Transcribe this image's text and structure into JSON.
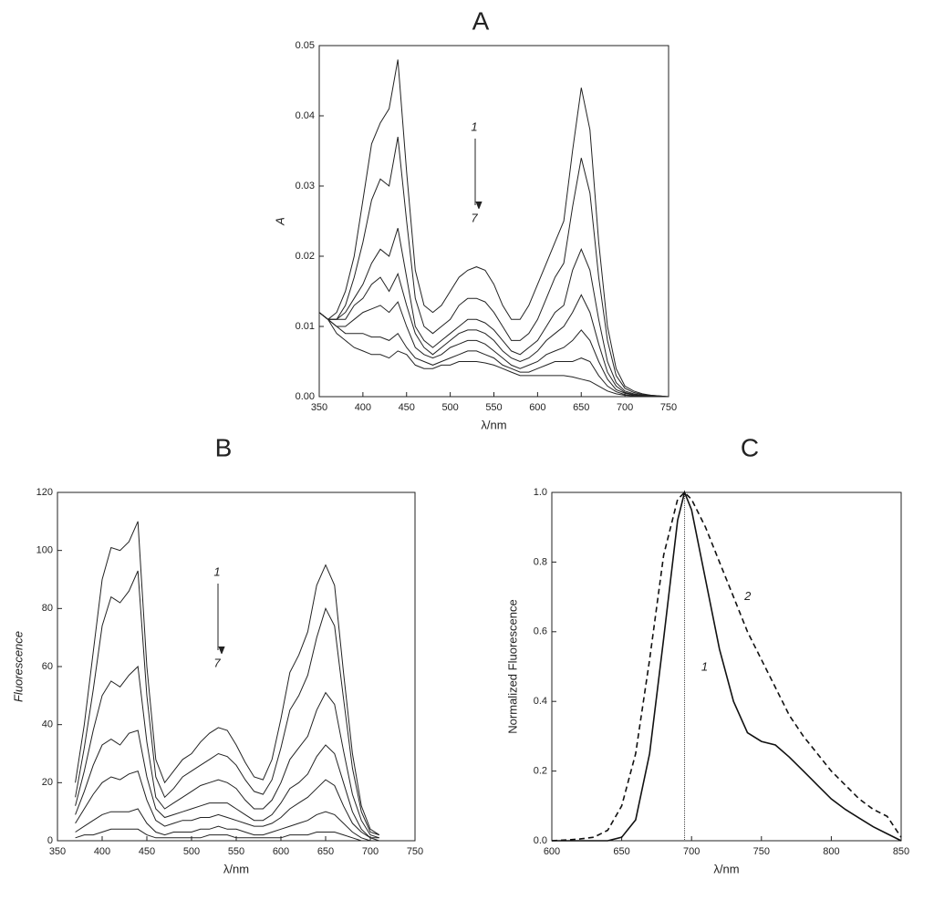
{
  "chart_data": [
    {
      "type": "line",
      "title": "A",
      "x_label": "λ/nm",
      "y_label": "A",
      "annotations": [
        "1",
        "7"
      ],
      "xlim": [
        350,
        750
      ],
      "xticks": [
        350,
        400,
        450,
        500,
        550,
        600,
        650,
        700,
        750
      ],
      "ylim": [
        0,
        0.05
      ],
      "yticks": [
        {
          "value": 0,
          "label": "0.00"
        },
        0.01,
        0.02,
        0.03,
        0.04,
        0.05
      ],
      "x": [
        350,
        360,
        370,
        380,
        390,
        400,
        410,
        420,
        430,
        440,
        450,
        460,
        470,
        480,
        490,
        500,
        510,
        520,
        530,
        540,
        550,
        560,
        570,
        580,
        590,
        600,
        610,
        620,
        630,
        640,
        650,
        660,
        670,
        680,
        690,
        700,
        710,
        720,
        730,
        740,
        750
      ],
      "series": [
        {
          "color": "#222222",
          "values": [
            0.012,
            0.011,
            0.012,
            0.015,
            0.02,
            0.028,
            0.036,
            0.039,
            0.041,
            0.048,
            0.032,
            0.018,
            0.013,
            0.012,
            0.013,
            0.015,
            0.017,
            0.018,
            0.0185,
            0.018,
            0.016,
            0.013,
            0.011,
            0.011,
            0.013,
            0.016,
            0.019,
            0.022,
            0.025,
            0.035,
            0.044,
            0.038,
            0.022,
            0.01,
            0.004,
            0.0015,
            0.0008,
            0.0004,
            0.0002,
            0.0001,
            0
          ]
        },
        {
          "color": "#222222",
          "values": [
            0.012,
            0.011,
            0.011,
            0.013,
            0.017,
            0.022,
            0.028,
            0.031,
            0.03,
            0.037,
            0.025,
            0.014,
            0.01,
            0.009,
            0.01,
            0.011,
            0.013,
            0.014,
            0.014,
            0.0135,
            0.012,
            0.01,
            0.008,
            0.008,
            0.009,
            0.011,
            0.014,
            0.017,
            0.019,
            0.027,
            0.034,
            0.029,
            0.017,
            0.008,
            0.003,
            0.0012,
            0.0006,
            0.0003,
            0.0002,
            0.0001,
            0
          ]
        },
        {
          "color": "#222222",
          "values": [
            0.012,
            0.011,
            0.011,
            0.012,
            0.014,
            0.016,
            0.019,
            0.021,
            0.02,
            0.024,
            0.017,
            0.01,
            0.008,
            0.007,
            0.008,
            0.009,
            0.01,
            0.011,
            0.011,
            0.0105,
            0.0095,
            0.008,
            0.0065,
            0.006,
            0.007,
            0.008,
            0.01,
            0.012,
            0.013,
            0.018,
            0.021,
            0.018,
            0.011,
            0.005,
            0.002,
            0.0008,
            0.0004,
            0.0002,
            0.0001,
            0,
            0
          ]
        },
        {
          "color": "#222222",
          "values": [
            0.012,
            0.011,
            0.011,
            0.011,
            0.013,
            0.014,
            0.016,
            0.017,
            0.015,
            0.0175,
            0.013,
            0.009,
            0.007,
            0.006,
            0.007,
            0.008,
            0.009,
            0.0095,
            0.0095,
            0.009,
            0.008,
            0.0065,
            0.0055,
            0.005,
            0.0055,
            0.0065,
            0.008,
            0.009,
            0.01,
            0.012,
            0.0145,
            0.012,
            0.0075,
            0.0035,
            0.0015,
            0.0006,
            0.0003,
            0.0002,
            0.0001,
            0,
            0
          ]
        },
        {
          "color": "#222222",
          "values": [
            0.012,
            0.011,
            0.01,
            0.01,
            0.011,
            0.012,
            0.0125,
            0.013,
            0.012,
            0.0135,
            0.01,
            0.007,
            0.006,
            0.0055,
            0.006,
            0.007,
            0.0075,
            0.008,
            0.008,
            0.0075,
            0.0065,
            0.0055,
            0.0045,
            0.004,
            0.0045,
            0.005,
            0.006,
            0.0065,
            0.007,
            0.008,
            0.0095,
            0.008,
            0.005,
            0.0025,
            0.001,
            0.0005,
            0.0002,
            0.0001,
            0,
            0,
            0
          ]
        },
        {
          "color": "#222222",
          "values": [
            0.012,
            0.011,
            0.01,
            0.009,
            0.009,
            0.009,
            0.0085,
            0.0085,
            0.008,
            0.009,
            0.007,
            0.0055,
            0.005,
            0.0045,
            0.005,
            0.0055,
            0.006,
            0.0065,
            0.0065,
            0.006,
            0.0055,
            0.0045,
            0.004,
            0.0035,
            0.0035,
            0.004,
            0.0045,
            0.005,
            0.005,
            0.005,
            0.0055,
            0.005,
            0.003,
            0.0015,
            0.0007,
            0.0003,
            0.0001,
            0,
            0,
            0,
            0
          ]
        },
        {
          "color": "#222222",
          "values": [
            0.012,
            0.011,
            0.009,
            0.008,
            0.007,
            0.0065,
            0.006,
            0.006,
            0.0055,
            0.0065,
            0.006,
            0.0045,
            0.004,
            0.004,
            0.0045,
            0.0045,
            0.005,
            0.005,
            0.005,
            0.0048,
            0.0045,
            0.004,
            0.0035,
            0.003,
            0.003,
            0.003,
            0.003,
            0.003,
            0.003,
            0.0028,
            0.0025,
            0.0022,
            0.0015,
            0.0008,
            0.0004,
            0.0002,
            0.0001,
            0,
            0,
            0,
            0
          ]
        }
      ]
    },
    {
      "type": "line",
      "title": "B",
      "x_label": "λ/nm",
      "y_label": "Fluorescence",
      "annotations": [
        "1",
        "7"
      ],
      "xlim": [
        350,
        750
      ],
      "xticks": [
        350,
        400,
        450,
        500,
        550,
        600,
        650,
        700,
        750
      ],
      "ylim": [
        0,
        120
      ],
      "yticks": [
        0,
        20,
        40,
        60,
        80,
        100,
        120
      ],
      "x": [
        370,
        380,
        390,
        400,
        410,
        420,
        430,
        440,
        450,
        460,
        470,
        480,
        490,
        500,
        510,
        520,
        530,
        540,
        550,
        560,
        570,
        580,
        590,
        600,
        610,
        620,
        630,
        640,
        650,
        660,
        670,
        680,
        690,
        700,
        710
      ],
      "series": [
        {
          "color": "#222222",
          "values": [
            20,
            40,
            65,
            90,
            101,
            100,
            103,
            110,
            60,
            28,
            20,
            24,
            28,
            30,
            34,
            37,
            39,
            38,
            33,
            27,
            22,
            21,
            28,
            42,
            58,
            64,
            72,
            88,
            95,
            88,
            58,
            30,
            12,
            4,
            2
          ]
        },
        {
          "color": "#222222",
          "values": [
            15,
            32,
            52,
            74,
            84,
            82,
            86,
            93,
            50,
            22,
            15,
            18,
            22,
            24,
            26,
            28,
            30,
            29,
            26,
            21,
            17,
            16,
            21,
            32,
            45,
            50,
            57,
            70,
            80,
            74,
            49,
            25,
            10,
            3,
            2
          ]
        },
        {
          "color": "#222222",
          "values": [
            12,
            24,
            38,
            50,
            55,
            53,
            57,
            60,
            34,
            15,
            11,
            13,
            15,
            17,
            19,
            20,
            21,
            20,
            18,
            14,
            11,
            11,
            14,
            20,
            28,
            32,
            36,
            45,
            51,
            47,
            31,
            16,
            7,
            2,
            1
          ]
        },
        {
          "color": "#222222",
          "values": [
            9,
            17,
            26,
            33,
            35,
            33,
            37,
            38,
            22,
            11,
            8,
            9,
            10,
            11,
            12,
            13,
            13,
            13,
            11,
            9,
            7,
            7,
            9,
            13,
            18,
            20,
            23,
            29,
            33,
            30,
            20,
            10,
            4,
            1,
            1
          ]
        },
        {
          "color": "#222222",
          "values": [
            6,
            11,
            16,
            20,
            22,
            21,
            23,
            24,
            14,
            7,
            5,
            6,
            7,
            7,
            8,
            8,
            9,
            8,
            7,
            6,
            5,
            5,
            6,
            8,
            11,
            13,
            15,
            18,
            21,
            19,
            12,
            6,
            3,
            1,
            0
          ]
        },
        {
          "color": "#222222",
          "values": [
            3,
            5,
            7,
            9,
            10,
            10,
            10,
            11,
            6,
            3,
            2,
            3,
            3,
            3,
            4,
            4,
            5,
            4,
            4,
            3,
            2,
            2,
            3,
            4,
            5,
            6,
            7,
            9,
            10,
            9,
            6,
            3,
            1,
            0,
            0
          ]
        },
        {
          "color": "#222222",
          "values": [
            1,
            2,
            2,
            3,
            4,
            4,
            4,
            4,
            2,
            1,
            1,
            1,
            1,
            1,
            1,
            2,
            2,
            2,
            1,
            1,
            1,
            1,
            1,
            1,
            2,
            2,
            2,
            3,
            3,
            3,
            2,
            1,
            0,
            0,
            0
          ]
        }
      ]
    },
    {
      "type": "line",
      "title": "C",
      "x_label": "λ/nm",
      "y_label": "Normalized Fluorescence",
      "vline": 695,
      "xlim": [
        600,
        850
      ],
      "xticks": [
        600,
        650,
        700,
        750,
        800,
        850
      ],
      "ylim": [
        0,
        1
      ],
      "yticks": [
        {
          "value": 0,
          "label": "0.0"
        },
        0.2,
        0.4,
        0.6,
        0.8,
        {
          "value": 1,
          "label": "1.0"
        }
      ],
      "x": [
        600,
        610,
        620,
        630,
        640,
        650,
        660,
        670,
        680,
        690,
        695,
        700,
        710,
        720,
        730,
        740,
        750,
        760,
        770,
        780,
        790,
        800,
        810,
        820,
        830,
        840,
        850
      ],
      "series": [
        {
          "name": "1",
          "color": "#111111",
          "dash": false,
          "values": [
            0,
            0,
            0,
            0,
            0,
            0.01,
            0.06,
            0.25,
            0.58,
            0.92,
            1,
            0.95,
            0.75,
            0.55,
            0.4,
            0.31,
            0.285,
            0.275,
            0.24,
            0.2,
            0.16,
            0.12,
            0.09,
            0.065,
            0.04,
            0.02,
            0
          ]
        },
        {
          "name": "2",
          "color": "#111111",
          "dash": true,
          "values": [
            0,
            0.002,
            0.005,
            0.01,
            0.03,
            0.1,
            0.25,
            0.52,
            0.82,
            0.98,
            1,
            0.98,
            0.9,
            0.8,
            0.7,
            0.6,
            0.52,
            0.44,
            0.36,
            0.3,
            0.25,
            0.2,
            0.16,
            0.12,
            0.09,
            0.07,
            0.01
          ]
        }
      ]
    }
  ]
}
